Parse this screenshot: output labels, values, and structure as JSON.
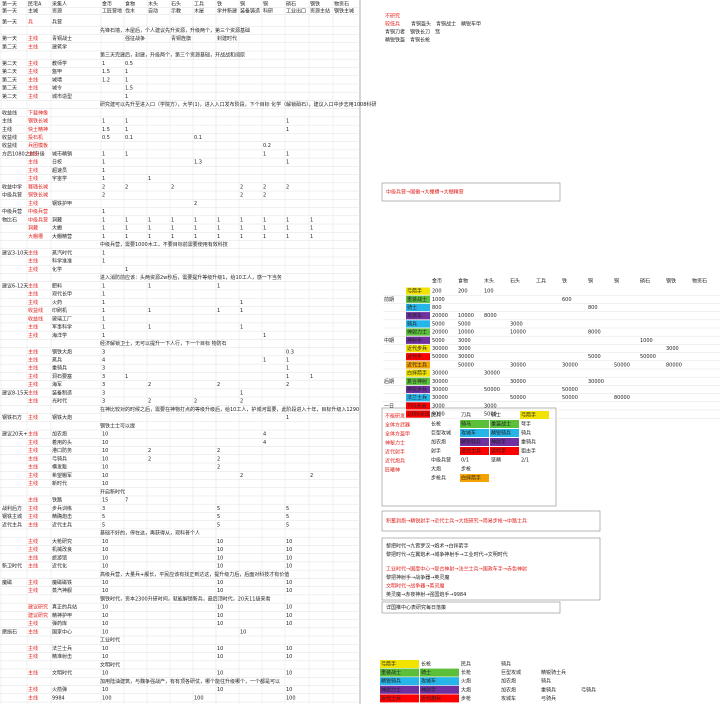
{
  "sheet": {
    "header": [
      [
        "第一天",
        "民宅A",
        "采集人",
        "金币",
        "食物",
        "木头",
        "石头",
        "工兵",
        "铁",
        "铜",
        "铜",
        "硝石",
        "钢铁",
        "物资石"
      ],
      [
        "第一天",
        "主城",
        "资源",
        "工匠营地",
        "伐木",
        "自动",
        "示教",
        "木屋",
        "学并新建",
        "装备铸造",
        "科研",
        "工业出口",
        "资源主站",
        "钢铁主城"
      ]
    ],
    "rows": [
      [
        "第一天",
        "兵",
        "兵营"
      ],
      {
        "note": "先锋石墙，木屋后，个人建议先升资源，升级两个，第三个资源基础"
      },
      [
        "第一天",
        "主线",
        "青铜战士",
        null,
        "强征战争",
        null,
        "青铜旌旗",
        null,
        "封建时代"
      ],
      [
        "第二天",
        "主线",
        "建筑学"
      ],
      {
        "note": "第三天完建后，封建，升级两个，第三个资源基础，开战战和阔原"
      },
      [
        "第二天",
        "主线",
        "教师学",
        1,
        0.5
      ],
      [
        "第二天",
        "主线",
        "盔甲",
        1.5,
        1
      ],
      [
        "第二天",
        "主线",
        "城墙",
        1.2,
        1
      ],
      [
        "第二天",
        "主线",
        "城令",
        null,
        1.5
      ],
      [
        "第二天",
        "主线",
        "城市造型",
        null,
        1
      ],
      {
        "note": "研究建可以先升至进入口（学院方），大学(1)，进入入口发布阶段，下个目标 化学（解锁硝石），建议入口中步志用1008科研"
      },
      [
        "收益线",
        "下载神像"
      ],
      [
        "主线",
        "钢铁长城",
        null,
        1,
        1,
        null,
        null,
        null,
        null,
        null,
        null,
        1
      ],
      [
        "主线",
        "快土精神",
        null,
        1.5,
        1,
        null,
        null,
        null,
        null,
        null,
        null,
        1
      ],
      [
        "收益线",
        "投石机",
        null,
        0.5,
        0.1,
        null,
        null,
        0.1
      ],
      [
        "收益线",
        "兵团模板",
        null,
        null,
        null,
        null,
        null,
        null,
        null,
        null,
        0.2
      ],
      [
        "方后1080之前升级",
        "主线",
        "城市精销",
        1,
        1,
        null,
        null,
        null,
        null,
        null,
        1,
        1
      ],
      [
        null,
        "主线",
        "日校",
        1,
        null,
        null,
        null,
        1.3,
        null,
        null,
        null,
        1
      ],
      [
        null,
        "主线",
        "超速员",
        1
      ],
      [
        null,
        "主线",
        "宇宙学",
        1,
        null,
        1
      ],
      [
        "收益中学",
        "赛璐长城",
        null,
        2,
        2,
        null,
        2,
        null,
        null,
        2,
        2,
        2
      ],
      [
        "中级兵营",
        "铜铁长城",
        null,
        2,
        null,
        null,
        null,
        null,
        null,
        2,
        2
      ],
      [
        null,
        "主线",
        "钢铁护甲",
        null,
        null,
        null,
        null,
        2
      ],
      [
        "中级兵营",
        "中级兵营",
        null,
        1
      ],
      [
        "物比石",
        "中级兵营",
        "洞藏",
        1,
        1,
        1,
        1,
        1,
        1,
        1,
        1,
        1,
        1
      ],
      [
        null,
        "洞藏",
        "大棚",
        1,
        1,
        1,
        1,
        1,
        1,
        1,
        1,
        1,
        1
      ],
      [
        null,
        "大棚槽",
        "大棚精营",
        1,
        1,
        1,
        1,
        1,
        1,
        1,
        1,
        1,
        1
      ],
      {
        "note": "中级兵营，需要1000木工，不要目标前需要使用有效科技"
      },
      [
        "建议3-10天",
        "主线",
        "蒸汽时代",
        1
      ],
      [
        null,
        "主线",
        "科学准准",
        1
      ],
      [
        null,
        "主线",
        "化学",
        null,
        1
      ],
      {
        "note": "进入消防前应该：头两资源2w秒后，需要提升等级升级1，给10工人，感一下当务"
      },
      [
        "建议6-12天",
        "主线",
        "肥料",
        1,
        null,
        1,
        null,
        null,
        1
      ],
      [
        null,
        "主线",
        "现代长甲",
        1
      ],
      [
        null,
        "主线",
        "火药",
        1,
        null,
        null,
        null,
        null,
        null,
        1
      ],
      [
        null,
        "收益线",
        "印刷机",
        1,
        null,
        1,
        null,
        null,
        1,
        1
      ],
      [
        null,
        "收益线",
        "玻璃工厂",
        1
      ],
      [
        null,
        "主线",
        "军事科学",
        1,
        null,
        1,
        null,
        null,
        null,
        1
      ],
      [
        null,
        "主线",
        "海洋学",
        1,
        null,
        null,
        null,
        null,
        null,
        null,
        1
      ],
      {
        "note": "经济解锁卫士，无可以提升一下人行，下一个目标 物防石"
      },
      [
        null,
        "主线",
        "钢铁大炮",
        3,
        null,
        null,
        null,
        null,
        null,
        null,
        null,
        0.3
      ],
      [
        null,
        "主线",
        "蒸兵",
        4,
        null,
        null,
        null,
        null,
        null,
        null,
        1,
        1
      ],
      [
        null,
        "主线",
        "重骑兵",
        3,
        null,
        null,
        null,
        null,
        null,
        null,
        null,
        1
      ],
      [
        null,
        "主线",
        "洞石要塞",
        3,
        1,
        null,
        null,
        null,
        null,
        null,
        null,
        1,
        1
      ],
      [
        null,
        "主线",
        "海军",
        3,
        null,
        2,
        null,
        null,
        2,
        null,
        null,
        2
      ],
      [
        "建议8-15天",
        "主线",
        "装备制造",
        3,
        null,
        null,
        null,
        null,
        null,
        1
      ],
      [
        null,
        "主线",
        "光时代",
        3,
        null,
        2,
        null,
        2,
        null,
        2
      ],
      {
        "note": "在神比较对的时候之后，需要在神物打点的等级升级后，给10工人，护城河需要，此阶段进入十年，目标升级入1290"
      },
      [
        "钢铁石方",
        "主线",
        "钢铁大炮",
        null,
        null,
        null,
        null,
        null,
        null,
        null,
        null,
        1
      ],
      {
        "note": "钢铁土士可以提"
      },
      [
        "建议20天+",
        "主线",
        "加农炮",
        10,
        null,
        null,
        null,
        null,
        null,
        null,
        4
      ],
      [
        null,
        "主线",
        "着用的头",
        10,
        null,
        null,
        null,
        null,
        null,
        null,
        4
      ],
      [
        null,
        "主线",
        "港口防务",
        10,
        null,
        2,
        null,
        null,
        2
      ],
      [
        null,
        "主线",
        "弓骑兵",
        10,
        null,
        2,
        null,
        null,
        2
      ],
      [
        null,
        "主线",
        "横发贩",
        10,
        null,
        null,
        null,
        null,
        2
      ],
      [
        null,
        "主线",
        "希望棚军",
        10,
        null,
        null,
        null,
        null,
        null,
        2,
        null,
        null,
        2
      ],
      [
        null,
        "主线",
        "新时代",
        10
      ],
      {
        "note": "开启新时代"
      },
      [
        null,
        "主线",
        "铁路",
        15,
        7
      ],
      [
        "战利后方",
        "主线",
        "步兵训练",
        3,
        null,
        null,
        null,
        null,
        5,
        null,
        null,
        5
      ],
      [
        "钢铁主城",
        "主线",
        "精确炮击",
        5,
        null,
        null,
        null,
        null,
        5,
        null,
        null,
        5
      ],
      [
        "近代主兵",
        "主线",
        "近代主兵",
        5,
        null,
        null,
        null,
        null,
        5,
        null,
        null,
        5
      ],
      {
        "note": "基础不好的，停在这，再获得从，现科普个人"
      },
      [
        null,
        "主线",
        "大枪研究",
        10,
        null,
        null,
        null,
        null,
        10,
        null,
        null,
        10
      ],
      [
        null,
        "主线",
        "机械改良",
        10,
        null,
        null,
        null,
        null,
        10,
        null,
        null,
        10
      ],
      [
        null,
        "主线",
        "旅游馆",
        10,
        null,
        null,
        null,
        null,
        10,
        null,
        null,
        10
      ],
      [
        "新卫时代",
        "主线",
        "近代化",
        10,
        null,
        null,
        null,
        null,
        10,
        null,
        null,
        10
      ],
      {
        "note": "高级兵营，大量兵+舰长，平民应该有找正到达这，提升级力后，后面对科技才有价值"
      },
      [
        "魔磁",
        "主线",
        "魔磁磁铁",
        10,
        null,
        null,
        null,
        null,
        10,
        null,
        null,
        10
      ],
      [
        null,
        "主线",
        "蒸汽神舰",
        10,
        null,
        null,
        null,
        null,
        10,
        null,
        null,
        10
      ],
      {
        "note": "钢铁时代，资本2300升研时间，就能解锁新兵，最后顶时代，20天11级来看"
      },
      [
        null,
        "建议研究",
        "真正的兵站",
        10,
        null,
        null,
        null,
        null,
        10,
        null,
        null,
        10
      ],
      [
        null,
        "建议研究",
        "精神护甲",
        10,
        null,
        null,
        null,
        null,
        10,
        null,
        null,
        10
      ],
      [
        null,
        "主线",
        "弹药库",
        10,
        null,
        null,
        null,
        null,
        10,
        null,
        null,
        10
      ],
      [
        "磨损石",
        "主线",
        "国家中心",
        10,
        null,
        null,
        null,
        null,
        null,
        10
      ],
      {
        "note": "工业时代"
      },
      [
        null,
        "主线",
        "法兰士兵",
        10,
        null,
        null,
        null,
        null,
        10,
        null,
        null,
        10
      ],
      [
        null,
        "主线",
        "精准射击",
        10,
        null,
        null,
        null,
        null,
        10,
        null,
        null,
        10
      ],
      {
        "note": "文明时代"
      },
      [
        null,
        "主线",
        "文明时代",
        10,
        null,
        null,
        null,
        null,
        10,
        null,
        null,
        10
      ],
      {
        "note": "加用陆油建筑，与魏争强战产，有有顶各研仗，哪个能往升级哪个，一个都是可以"
      },
      [
        null,
        "主线",
        "火箭弹",
        10,
        null,
        null,
        null,
        null,
        10,
        null,
        null,
        10
      ],
      [
        null,
        "主线",
        "9984",
        100,
        null,
        null,
        null,
        100,
        null,
        null,
        null,
        100
      ]
    ]
  },
  "notes": {
    "top_red": [
      "不研究",
      "较低兵"
    ],
    "top_lines": [
      "青铜盔头　青铜战士　精锐车甲",
      "青铜刀者　钢铁长刀　驽",
      "精锐铁盔　青铜长枪"
    ],
    "chain1": "中级兵营→国徽→大棚槽→大棚精营",
    "chain2": "积蓄到炮→精锐射手→近代士兵→大炮研究→简易步枪→中路士兵",
    "paths": [
      "黎把时代→九霄罗汉→炮术→白拌箭手",
      "黎把时代→左翼炮术→城争神射手→工业时代→文明时代",
      "工业时代→国度中心→复合神射→法兰士兵→国政车手→赤色神射",
      "黎把神射手→战争器→英灵魔",
      "文明时代→战争器→英灵魔",
      "英灵魔→赤夜神射→强国炮手→9984"
    ],
    "footer": "详国推中心表研究每日落策"
  },
  "cost_table": {
    "header": [
      "金币",
      "食物",
      "木头",
      "石头",
      "工兵",
      "铁",
      "铜",
      "铜",
      "硝石",
      "钢铁",
      "物资石"
    ],
    "rows": [
      {
        "unit": {
          "text": "弓箭手",
          "color": "#f2e200"
        },
        "values": [
          200,
          200,
          100
        ]
      },
      {
        "stage": "前期",
        "unit": {
          "text": "重装战士",
          "color": "#5bbf3a"
        },
        "values": [
          1000,
          null,
          null,
          null,
          null,
          600
        ]
      },
      {
        "unit": {
          "text": "骑士",
          "color": "#26b5e8"
        },
        "values": [
          800,
          null,
          null,
          null,
          null,
          null,
          800
        ]
      },
      {
        "unit": {
          "text": "攻城车",
          "color": "#7030a0"
        },
        "values": [
          20000,
          10000,
          8000
        ]
      },
      {
        "unit": {
          "text": "骑兵",
          "color": "#26b5e8"
        },
        "values": [
          5000,
          5000,
          null,
          3000
        ]
      },
      {
        "unit": {
          "text": "神射力士",
          "color": "#5bbf3a"
        },
        "values": [
          20000,
          10000,
          null,
          10000,
          null,
          null,
          8000
        ]
      },
      {
        "stage": "中期",
        "unit": {
          "text": "神射手",
          "color": "#7030a0"
        },
        "values": [
          5000,
          3000,
          null,
          null,
          null,
          null,
          null,
          null,
          1000
        ]
      },
      {
        "unit": {
          "text": "近代步兵",
          "color": "#f2e200"
        },
        "values": [
          30000,
          3000,
          null,
          null,
          null,
          null,
          null,
          null,
          null,
          3000
        ]
      },
      {
        "unit": {
          "text": "近代手",
          "color": "#ff0000"
        },
        "values": [
          50000,
          30000,
          null,
          null,
          null,
          null,
          5000,
          null,
          50000
        ]
      },
      {
        "unit": {
          "text": "近代士兵",
          "color": "#f5a300"
        },
        "values": [
          null,
          50000,
          null,
          30000,
          null,
          30000,
          null,
          50000,
          null,
          80000
        ]
      },
      {
        "unit": {
          "text": "白拌箭手",
          "color": "#f2e200"
        },
        "values": [
          30000,
          null,
          30000
        ]
      },
      {
        "stage": "后期",
        "unit": {
          "text": "复合神射",
          "color": "#5bbf3a"
        },
        "values": [
          30000,
          null,
          null,
          30000,
          null,
          null,
          30000
        ]
      },
      {
        "unit": {
          "text": "精锐步兵",
          "color": "#7030a0"
        },
        "values": [
          30000,
          null,
          50000,
          null,
          null,
          50000
        ]
      },
      {
        "unit": {
          "text": "法兰士兵",
          "color": "#26b5e8"
        },
        "values": [
          30000,
          null,
          null,
          50000,
          null,
          50000,
          null,
          80000
        ]
      },
      {
        "stage": "一日",
        "unit": {
          "text": "750天出",
          "color": "#ff0000"
        },
        "values": [
          3000,
          null,
          3000
        ]
      },
      {
        "unit": {
          "text": "1000天出",
          "color": "#ff0000"
        },
        "values": [
          5000,
          null,
          5000,
          null,
          5000
        ]
      }
    ]
  },
  "research_box": {
    "red_list": [
      "不能研发",
      "全体方武器",
      "全体方盔甲",
      "神秘力士",
      "近代射手",
      "近代炮兵",
      "匠曦神"
    ],
    "grid": [
      [
        {
          "text": "民兵"
        },
        {
          "text": "刀兵"
        },
        {
          "text": "骑士"
        },
        {
          "text": "弓箭手",
          "color": "#f2e200"
        }
      ],
      [
        {
          "text": "长枪"
        },
        {
          "text": "骑马",
          "color": "#5bbf3a"
        },
        {
          "text": "重装战士",
          "color": "#5bbf3a"
        },
        {
          "text": "弩手"
        }
      ],
      [
        {
          "text": "巨型攻城"
        },
        {
          "text": "攻城车",
          "color": "#26b5e8"
        },
        {
          "text": "精锐骑兵",
          "color": "#26b5e8"
        },
        {
          "text": "骑兵"
        }
      ],
      [
        {
          "text": "加农炮"
        },
        {
          "text": "精锐骑兵",
          "color": "#7030a0"
        },
        {
          "text": "神射手",
          "color": "#7030a0"
        },
        {
          "text": "重骑兵"
        }
      ],
      [
        {
          "text": "射手"
        },
        {
          "text": "近代士兵",
          "color": "#ff0000"
        },
        {
          "text": "近代手",
          "color": "#ff0000"
        },
        {
          "text": "狙击手"
        }
      ],
      [
        {
          "text": "中级兵营"
        },
        {
          "text": "0/1"
        },
        {
          "text": "坚精"
        },
        {
          "text": "2/1"
        }
      ],
      [
        {
          "text": "大炮"
        },
        {
          "text": "步枪"
        }
      ],
      [
        {
          "text": "步枪兵"
        },
        {
          "text": "白拌箭手",
          "color": "#f5a300"
        }
      ]
    ]
  },
  "bottom_table": {
    "rows": [
      [
        {
          "text": "弓箭手",
          "color": "#f2e200"
        },
        {
          "text": "长枪"
        },
        {
          "text": "民兵"
        },
        {
          "text": "骑兵"
        }
      ],
      [
        {
          "text": "重装战士",
          "color": "#5bbf3a"
        },
        {
          "text": "骑士",
          "color": "#5bbf3a"
        },
        {
          "text": "长枪"
        },
        {
          "text": "巨型攻城"
        },
        {
          "text": "精锐骑士兵"
        }
      ],
      [
        {
          "text": "精锐骑兵",
          "color": "#26b5e8"
        },
        {
          "text": "攻城车",
          "color": "#26b5e8"
        },
        {
          "text": "火炮"
        },
        {
          "text": "加农炮"
        },
        {
          "text": "骑兵"
        }
      ],
      [
        {
          "text": "神射力士",
          "color": "#7030a0"
        },
        {
          "text": "神射手",
          "color": "#7030a0"
        },
        {
          "text": "大炮"
        },
        {
          "text": "加农炮"
        },
        {
          "text": "重骑兵"
        },
        {
          "text": "弓骑兵"
        }
      ],
      [
        {
          "text": "近代士兵",
          "color": "#ff0000"
        },
        {
          "text": "近代炮兵",
          "color": "#ff0000"
        },
        {
          "text": "步枪"
        },
        {
          "text": "攻城车"
        },
        {
          "text": "弓骑兵"
        }
      ]
    ]
  }
}
